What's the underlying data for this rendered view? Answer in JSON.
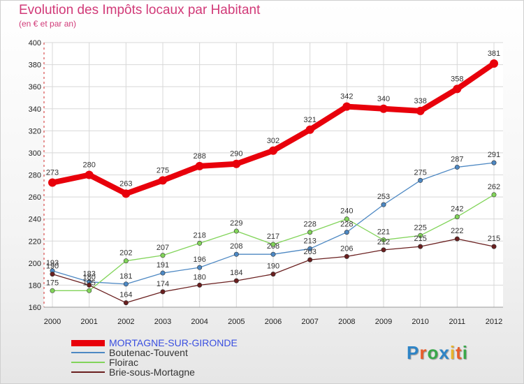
{
  "header": {
    "title": "Evolution des Impôts locaux par Habitant",
    "subtitle": "(en € et par an)"
  },
  "logo": {
    "text": "Proxiti",
    "colors": [
      "#2e84c6",
      "#e85d2a",
      "#3aa84b",
      "#2e84c6",
      "#e8b32a",
      "#e85d2a",
      "#3aa84b"
    ]
  },
  "chart_data": {
    "type": "line",
    "x": [
      "2000",
      "2001",
      "2002",
      "2003",
      "2004",
      "2005",
      "2006",
      "2007",
      "2008",
      "2009",
      "2010",
      "2011",
      "2012"
    ],
    "ylim": [
      160,
      400
    ],
    "yticks": [
      160,
      180,
      200,
      220,
      240,
      260,
      280,
      300,
      320,
      340,
      360,
      380,
      400
    ],
    "grid": true,
    "legend_position": "bottom-left",
    "series": [
      {
        "name": "MORTAGNE-SUR-GIRONDE",
        "color": "#e8000b",
        "values": [
          273,
          280,
          263,
          275,
          288,
          290,
          302,
          321,
          342,
          340,
          338,
          358,
          381
        ]
      },
      {
        "name": "Boutenac-Touvent",
        "color": "#4d88c3",
        "values": [
          193,
          183,
          181,
          191,
          196,
          208,
          208,
          213,
          228,
          253,
          275,
          287,
          291
        ]
      },
      {
        "name": "Floirac",
        "color": "#82d45a",
        "values": [
          175,
          175,
          202,
          207,
          218,
          229,
          217,
          228,
          240,
          221,
          225,
          242,
          262
        ]
      },
      {
        "name": "Brie-sous-Mortagne",
        "color": "#6a1f1f",
        "values": [
          190,
          180,
          164,
          174,
          180,
          184,
          190,
          203,
          206,
          212,
          215,
          222,
          215
        ]
      }
    ]
  }
}
